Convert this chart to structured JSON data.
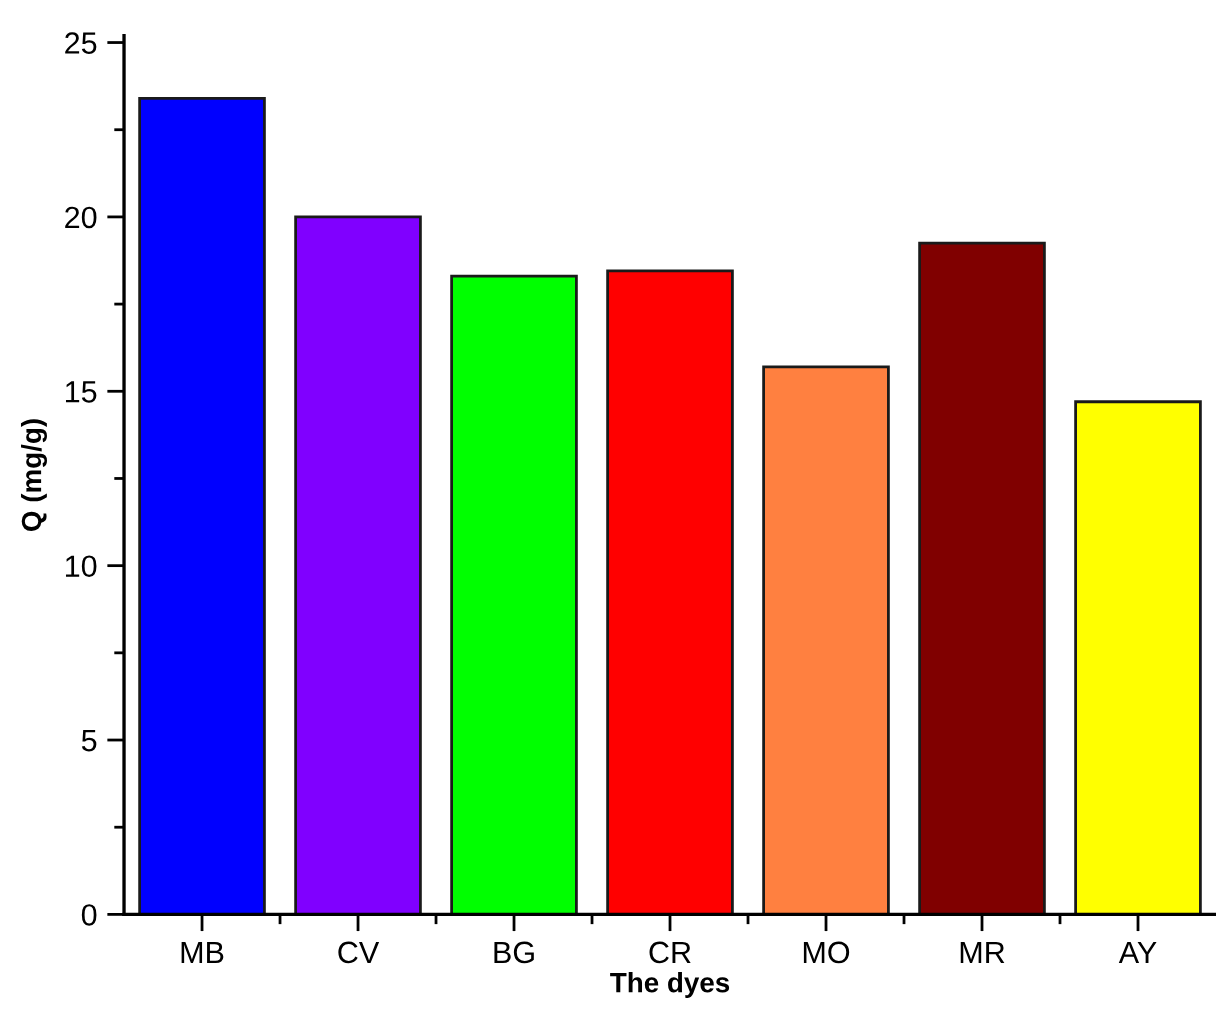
{
  "chart_data": {
    "type": "bar",
    "xlabel": "The dyes",
    "ylabel": "Q (mg/g)",
    "categories": [
      "MB",
      "CV",
      "BG",
      "CR",
      "MO",
      "MR",
      "AY"
    ],
    "values": [
      23.4,
      20.0,
      18.3,
      18.45,
      15.7,
      19.25,
      14.7
    ],
    "colors": [
      "#0000ff",
      "#8000ff",
      "#00ff00",
      "#ff0000",
      "#ff8040",
      "#800000",
      "#ffff00"
    ],
    "ylim": [
      0,
      25.2
    ],
    "yticks": [
      0,
      5,
      10,
      15,
      20,
      25
    ],
    "grid": false,
    "legend": false
  }
}
